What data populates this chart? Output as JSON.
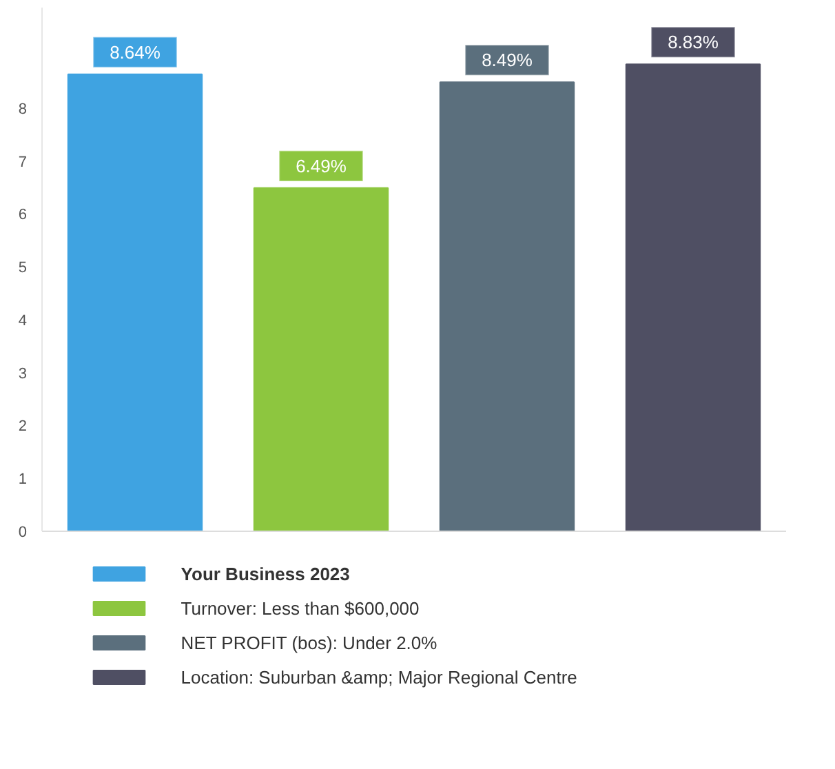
{
  "chart_data": {
    "type": "bar",
    "categories": [
      null,
      null,
      null,
      null
    ],
    "series": [
      {
        "name": "Your Business 2023",
        "color": "#3fa3e1",
        "values": [
          8.64,
          null,
          null,
          null
        ],
        "value_labels": [
          "8.64%",
          null,
          null,
          null
        ]
      },
      {
        "name": "Turnover: Less than $600,000",
        "color": "#8dc63f",
        "values": [
          null,
          6.49,
          null,
          null
        ],
        "value_labels": [
          null,
          "6.49%",
          null,
          null
        ]
      },
      {
        "name": "NET PROFIT (bos): Under 2.0%",
        "color": "#5b6f7d",
        "values": [
          null,
          null,
          8.49,
          null
        ],
        "value_labels": [
          null,
          null,
          "8.49%",
          null
        ]
      },
      {
        "name": "Location: Suburban &amp; Major Regional Centre",
        "color": "#4f4f63",
        "values": [
          null,
          null,
          null,
          8.83
        ],
        "value_labels": [
          null,
          null,
          null,
          "8.83%"
        ]
      }
    ],
    "ylim": [
      0,
      9.9
    ],
    "yticks": [
      0,
      1,
      2,
      3,
      4,
      5,
      6,
      7,
      8
    ],
    "grid": false,
    "legend": "bottom"
  }
}
